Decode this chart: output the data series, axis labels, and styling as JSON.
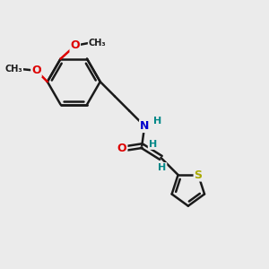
{
  "bg_color": "#ebebeb",
  "bond_color": "#1a1a1a",
  "bond_width": 1.8,
  "atom_colors": {
    "O": "#dd0000",
    "N": "#0000cc",
    "S": "#aaaa00",
    "H": "#008888",
    "C": "#1a1a1a"
  },
  "font_size_atom": 9,
  "font_size_H": 8
}
